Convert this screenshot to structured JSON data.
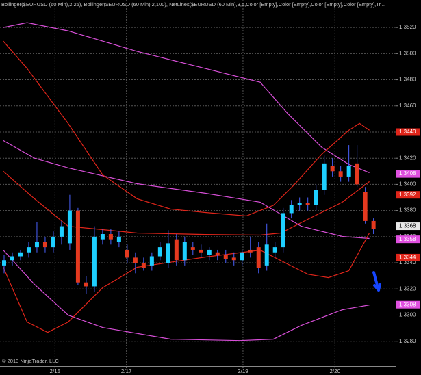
{
  "chart_data": {
    "type": "candlestick",
    "header": "Bollinger($EURUSD (60 Min),2,25), Bollinger($EURUSD (60 Min),2,100), NetLines($EURUSD (60 Min),3,5,Color [Empty],Color [Empty],Color [Empty],Color [Empty],Tr...",
    "copyright": "© 2013 NinjaTrader, LLC",
    "up_color": "#1ecfff",
    "down_color": "#e4391f",
    "wick_color": "#4a62ff",
    "grid": true,
    "ylim": [
      1.3261,
      1.3541
    ],
    "yticks": [
      {
        "value": 1.328,
        "label": "1.3280"
      },
      {
        "value": 1.33,
        "label": "1.3300"
      },
      {
        "value": 1.332,
        "label": "1.3320"
      },
      {
        "value": 1.334,
        "label": "1.3340"
      },
      {
        "value": 1.336,
        "label": "1.3360"
      },
      {
        "value": 1.338,
        "label": "1.3380"
      },
      {
        "value": 1.34,
        "label": "1.3400"
      },
      {
        "value": 1.342,
        "label": "1.3420"
      },
      {
        "value": 1.344,
        "label": "1.3440"
      },
      {
        "value": 1.346,
        "label": "1.3460"
      },
      {
        "value": 1.348,
        "label": "1.3480"
      },
      {
        "value": 1.35,
        "label": "1.3500"
      },
      {
        "value": 1.352,
        "label": "1.3520"
      }
    ],
    "xlim": [
      -0.5,
      47.7
    ],
    "xticks": [
      {
        "value": 6.2,
        "label": "2/15"
      },
      {
        "value": 14.9,
        "label": "2/17"
      },
      {
        "value": 29.1,
        "label": "2/19"
      },
      {
        "value": 40.3,
        "label": "2/20"
      }
    ],
    "open": [
      1.3338,
      1.3342,
      1.3345,
      1.3348,
      1.3352,
      1.3356,
      1.3352,
      1.336,
      1.3355,
      1.338,
      1.3325,
      1.3322,
      1.3358,
      1.3362,
      1.3356,
      1.335,
      1.3344,
      1.334,
      1.3338,
      1.3345,
      1.334,
      1.3358,
      1.3342,
      1.3352,
      1.335,
      1.3346,
      1.3348,
      1.3346,
      1.3344,
      1.3342,
      1.335,
      1.3352,
      1.3338,
      1.3348,
      1.3352,
      1.3378,
      1.3384,
      1.3386,
      1.3384,
      1.3396,
      1.3414,
      1.341,
      1.3406,
      1.3416,
      1.3394,
      1.3372
    ],
    "high": [
      1.3346,
      1.3348,
      1.335,
      1.3356,
      1.3371,
      1.336,
      1.3364,
      1.3372,
      1.3392,
      1.3382,
      1.333,
      1.3368,
      1.3366,
      1.3366,
      1.3364,
      1.3354,
      1.3348,
      1.3344,
      1.3348,
      1.3356,
      1.3365,
      1.3362,
      1.336,
      1.3356,
      1.3354,
      1.3352,
      1.335,
      1.335,
      1.3348,
      1.335,
      1.336,
      1.3356,
      1.337,
      1.3356,
      1.3382,
      1.3388,
      1.339,
      1.339,
      1.34,
      1.3422,
      1.342,
      1.3414,
      1.343,
      1.343,
      1.3398,
      1.3374
    ],
    "low": [
      1.3332,
      1.3338,
      1.3342,
      1.3344,
      1.3348,
      1.3348,
      1.3348,
      1.3354,
      1.335,
      1.3323,
      1.3316,
      1.3318,
      1.3354,
      1.3354,
      1.3352,
      1.334,
      1.3332,
      1.3334,
      1.3334,
      1.3342,
      1.3336,
      1.3338,
      1.3338,
      1.3346,
      1.3344,
      1.3342,
      1.3342,
      1.334,
      1.3338,
      1.3338,
      1.3344,
      1.3332,
      1.3334,
      1.3344,
      1.3348,
      1.3374,
      1.338,
      1.338,
      1.338,
      1.3392,
      1.3406,
      1.3402,
      1.3402,
      1.3398,
      1.337,
      1.3362
    ],
    "close": [
      1.3342,
      1.3345,
      1.3348,
      1.3352,
      1.3356,
      1.3352,
      1.336,
      1.3368,
      1.338,
      1.3325,
      1.3322,
      1.336,
      1.3362,
      1.3358,
      1.336,
      1.3344,
      1.334,
      1.3336,
      1.3345,
      1.3352,
      1.3355,
      1.3342,
      1.3356,
      1.335,
      1.3348,
      1.335,
      1.3346,
      1.3343,
      1.3342,
      1.3348,
      1.3348,
      1.3336,
      1.3354,
      1.3352,
      1.3378,
      1.3384,
      1.3386,
      1.3384,
      1.3396,
      1.3416,
      1.341,
      1.3406,
      1.3414,
      1.34,
      1.3372,
      1.3366
    ],
    "lines": [
      {
        "color": "#d84fd8",
        "x": [
          -0.1,
          2.8,
          7.8,
          16.2,
          24.5,
          31.2,
          34.5,
          38.7,
          42,
          44.5
        ],
        "values": [
          1.352,
          1.35237,
          1.35174,
          1.35017,
          1.34886,
          1.34781,
          1.34545,
          1.34283,
          1.34152,
          1.34089
        ]
      },
      {
        "color": "#d84fd8",
        "x": [
          -0.1,
          3.7,
          7.8,
          16.2,
          24.5,
          31.2,
          36.2,
          41.2,
          44.5
        ],
        "values": [
          1.34335,
          1.342,
          1.34126,
          1.34005,
          1.33932,
          1.33864,
          1.3368,
          1.33602,
          1.33586
        ]
      },
      {
        "color": "#d84fd8",
        "x": [
          -0.1,
          3.7,
          7.8,
          12,
          20.3,
          28.7,
          32.8,
          36.2,
          41.2,
          44.5
        ],
        "values": [
          1.33497,
          1.33235,
          1.33,
          1.32905,
          1.32816,
          1.32805,
          1.32816,
          1.32921,
          1.33041,
          1.33078
        ]
      },
      {
        "color": "#e0251a",
        "x": [
          -0.1,
          2.8,
          7.8,
          12,
          16.2,
          20.3,
          24.5,
          29.5,
          32.8,
          35.3,
          38.7,
          42,
          43.3,
          44.5
        ],
        "values": [
          1.35095,
          1.34886,
          1.34466,
          1.34073,
          1.3389,
          1.33811,
          1.33785,
          1.33759,
          1.3384,
          1.33995,
          1.34231,
          1.34414,
          1.34466,
          1.34414
        ]
      },
      {
        "color": "#e0251a",
        "x": [
          -0.1,
          3.7,
          7.8,
          12,
          16.2,
          24.5,
          31.2,
          33.7,
          37,
          41.2,
          44.5
        ],
        "values": [
          1.341,
          1.3389,
          1.3368,
          1.33654,
          1.33628,
          1.33617,
          1.33612,
          1.33628,
          1.33733,
          1.33864,
          1.34021
        ]
      },
      {
        "color": "#e0251a",
        "x": [
          -0.1,
          2.8,
          5.3,
          7.8,
          12,
          16.2,
          24.5,
          31.2,
          34.5,
          37,
          39.5,
          42,
          44.5
        ],
        "values": [
          1.33366,
          1.32947,
          1.32868,
          1.32947,
          1.33209,
          1.33366,
          1.33444,
          1.33497,
          1.33392,
          1.33313,
          1.33287,
          1.3334,
          1.33628
        ]
      }
    ],
    "price_markers": [
      {
        "value": 1.344,
        "label": "1.3440",
        "color": "#e0251a",
        "text_color": "#ffffff"
      },
      {
        "value": 1.3408,
        "label": "1.3408",
        "color": "#e050e0",
        "text_color": "#ffffff"
      },
      {
        "value": 1.3392,
        "label": "1.3392",
        "color": "#e0251a",
        "text_color": "#ffffff"
      },
      {
        "value": 1.3368,
        "label": "1.3368",
        "color": "#e8e8e8",
        "text_color": "#000000"
      },
      {
        "value": 1.3358,
        "label": "1.3358",
        "color": "#e050e0",
        "text_color": "#ffffff"
      },
      {
        "value": 1.3344,
        "label": "1.3344",
        "color": "#e0251a",
        "text_color": "#ffffff"
      },
      {
        "value": 1.3308,
        "label": "1.3308",
        "color": "#e050e0",
        "text_color": "#ffffff"
      }
    ]
  }
}
